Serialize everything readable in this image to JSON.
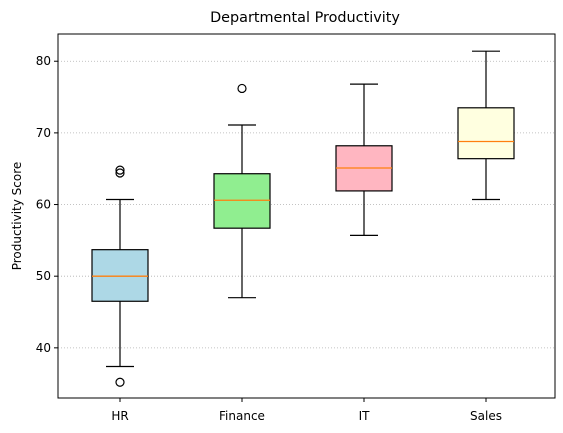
{
  "chart_data": {
    "type": "box",
    "title": "Departmental Productivity",
    "xlabel": "",
    "ylabel": "Productivity Score",
    "ylim": [
      33,
      83.8
    ],
    "yticks": [
      40,
      50,
      60,
      70,
      80
    ],
    "grid": "y-dotted",
    "median_color": "#ff7f0e",
    "categories": [
      "HR",
      "Finance",
      "IT",
      "Sales"
    ],
    "boxes": [
      {
        "name": "HR",
        "color": "#add8e6",
        "whislo": 37.4,
        "q1": 46.5,
        "med": 50.0,
        "q3": 53.7,
        "whishi": 60.7,
        "fliers": [
          64.8,
          64.4,
          35.2
        ]
      },
      {
        "name": "Finance",
        "color": "#90ee90",
        "whislo": 47.0,
        "q1": 56.7,
        "med": 60.6,
        "q3": 64.3,
        "whishi": 71.1,
        "fliers": [
          76.2
        ]
      },
      {
        "name": "IT",
        "color": "#ffb6c1",
        "whislo": 55.7,
        "q1": 61.9,
        "med": 65.1,
        "q3": 68.2,
        "whishi": 76.8,
        "fliers": []
      },
      {
        "name": "Sales",
        "color": "#ffffe0",
        "whislo": 60.7,
        "q1": 66.4,
        "med": 68.8,
        "q3": 73.5,
        "whishi": 81.4,
        "fliers": []
      }
    ]
  }
}
